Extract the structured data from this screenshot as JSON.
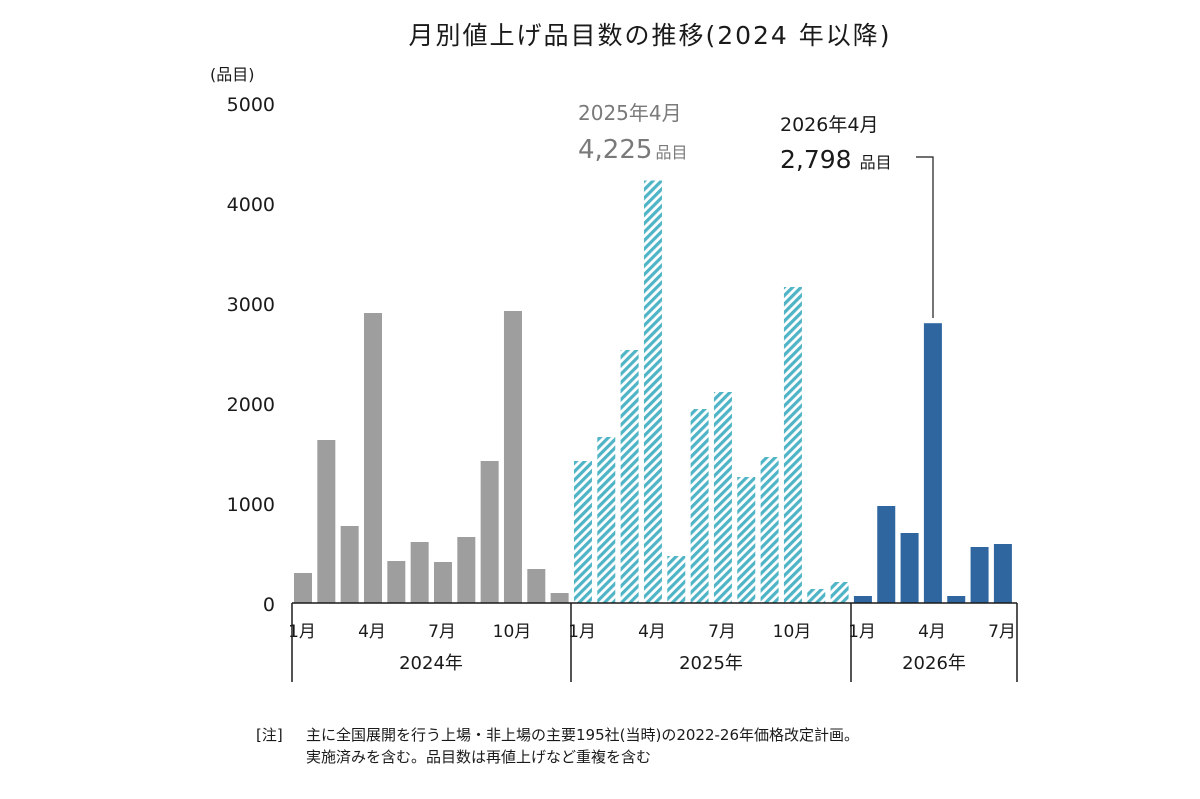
{
  "chart_data": {
    "type": "bar",
    "title": "月別値上げ品目数の推移(2024 年以降)",
    "ylabel": "(品目)",
    "ylim": [
      0,
      5000
    ],
    "y_ticks": [
      "0",
      "1000",
      "2000",
      "3000",
      "4000",
      "5000"
    ],
    "x_tick_labels": {
      "2024": [
        "1月",
        "4月",
        "7月",
        "10月"
      ],
      "2025": [
        "1月",
        "4月",
        "7月",
        "10月"
      ],
      "2026": [
        "1月",
        "4月",
        "7月"
      ]
    },
    "groups": [
      {
        "name": "2024年",
        "color": "#9e9e9e",
        "pattern": "solid"
      },
      {
        "name": "2025年",
        "color": "#4fb4c6",
        "pattern": "hatched"
      },
      {
        "name": "2026年",
        "color": "#2f66a0",
        "pattern": "solid"
      }
    ],
    "series": [
      {
        "name": "2024年",
        "months": [
          1,
          2,
          3,
          4,
          5,
          6,
          7,
          8,
          9,
          10,
          11,
          12
        ],
        "values": [
          300,
          1630,
          770,
          2900,
          420,
          610,
          410,
          660,
          1420,
          2920,
          340,
          100
        ]
      },
      {
        "name": "2025年",
        "months": [
          1,
          2,
          3,
          4,
          5,
          6,
          7,
          8,
          9,
          10,
          11,
          12
        ],
        "values": [
          1420,
          1660,
          2530,
          4225,
          470,
          1940,
          2110,
          1260,
          1460,
          3160,
          140,
          210
        ]
      },
      {
        "name": "2026年",
        "months": [
          1,
          2,
          3,
          4,
          5,
          6,
          7
        ],
        "values": [
          70,
          970,
          700,
          2798,
          70,
          560,
          590
        ]
      }
    ],
    "annotations": {
      "a2025": {
        "line1": "2025年4月",
        "value": "4,225",
        "unit": "品目"
      },
      "a2026": {
        "line1": "2026年4月",
        "value": "2,798",
        "unit": "品目"
      }
    },
    "note": {
      "prefix": "[注]",
      "line1": "主に全国展開を行う上場・非上場の主要195社(当時)の2022-26年価格改定計画。",
      "line2": "実施済みを含む。品目数は再値上げなど重複を含む"
    }
  }
}
